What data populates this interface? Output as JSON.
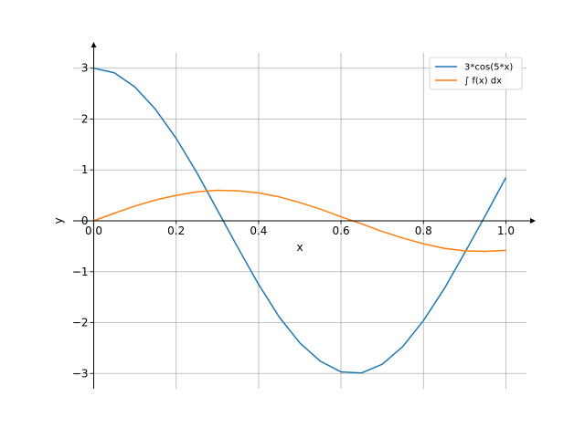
{
  "chart_data": {
    "type": "line",
    "xlabel": "x",
    "ylabel": "y",
    "xlim": [
      0.0,
      1.0
    ],
    "ylim": [
      -3.3,
      3.3
    ],
    "x_ticks": [
      "0.0",
      "0.2",
      "0.4",
      "0.6",
      "0.8",
      "1.0"
    ],
    "y_ticks": [
      "−3",
      "−2",
      "−1",
      "0",
      "1",
      "2",
      "3"
    ],
    "grid": true,
    "legend_position": "top-right",
    "series": [
      {
        "name": "3*cos(5*x)",
        "color": "#1f77b4",
        "x": [
          0.0,
          0.05,
          0.1,
          0.15,
          0.2,
          0.25,
          0.3,
          0.35,
          0.4,
          0.45,
          0.5,
          0.55,
          0.6,
          0.65,
          0.7,
          0.75,
          0.8,
          0.85,
          0.9,
          0.95,
          1.0
        ],
        "y": [
          3.0,
          2.91,
          2.63,
          2.19,
          1.62,
          0.95,
          0.21,
          -0.53,
          -1.25,
          -1.89,
          -2.4,
          -2.76,
          -2.97,
          -2.99,
          -2.82,
          -2.47,
          -1.96,
          -1.34,
          -0.63,
          0.1,
          0.85
        ]
      },
      {
        "name": "∫ f(x) dx",
        "color": "#ff7f0e",
        "x": [
          0.0,
          0.05,
          0.1,
          0.15,
          0.2,
          0.25,
          0.3,
          0.35,
          0.4,
          0.45,
          0.5,
          0.55,
          0.6,
          0.65,
          0.7,
          0.75,
          0.8,
          0.85,
          0.9,
          0.95,
          1.0
        ],
        "y": [
          0.0,
          0.15,
          0.29,
          0.41,
          0.5,
          0.57,
          0.6,
          0.59,
          0.55,
          0.47,
          0.36,
          0.23,
          0.08,
          -0.06,
          -0.21,
          -0.34,
          -0.45,
          -0.54,
          -0.59,
          -0.6,
          -0.58
        ]
      }
    ]
  }
}
